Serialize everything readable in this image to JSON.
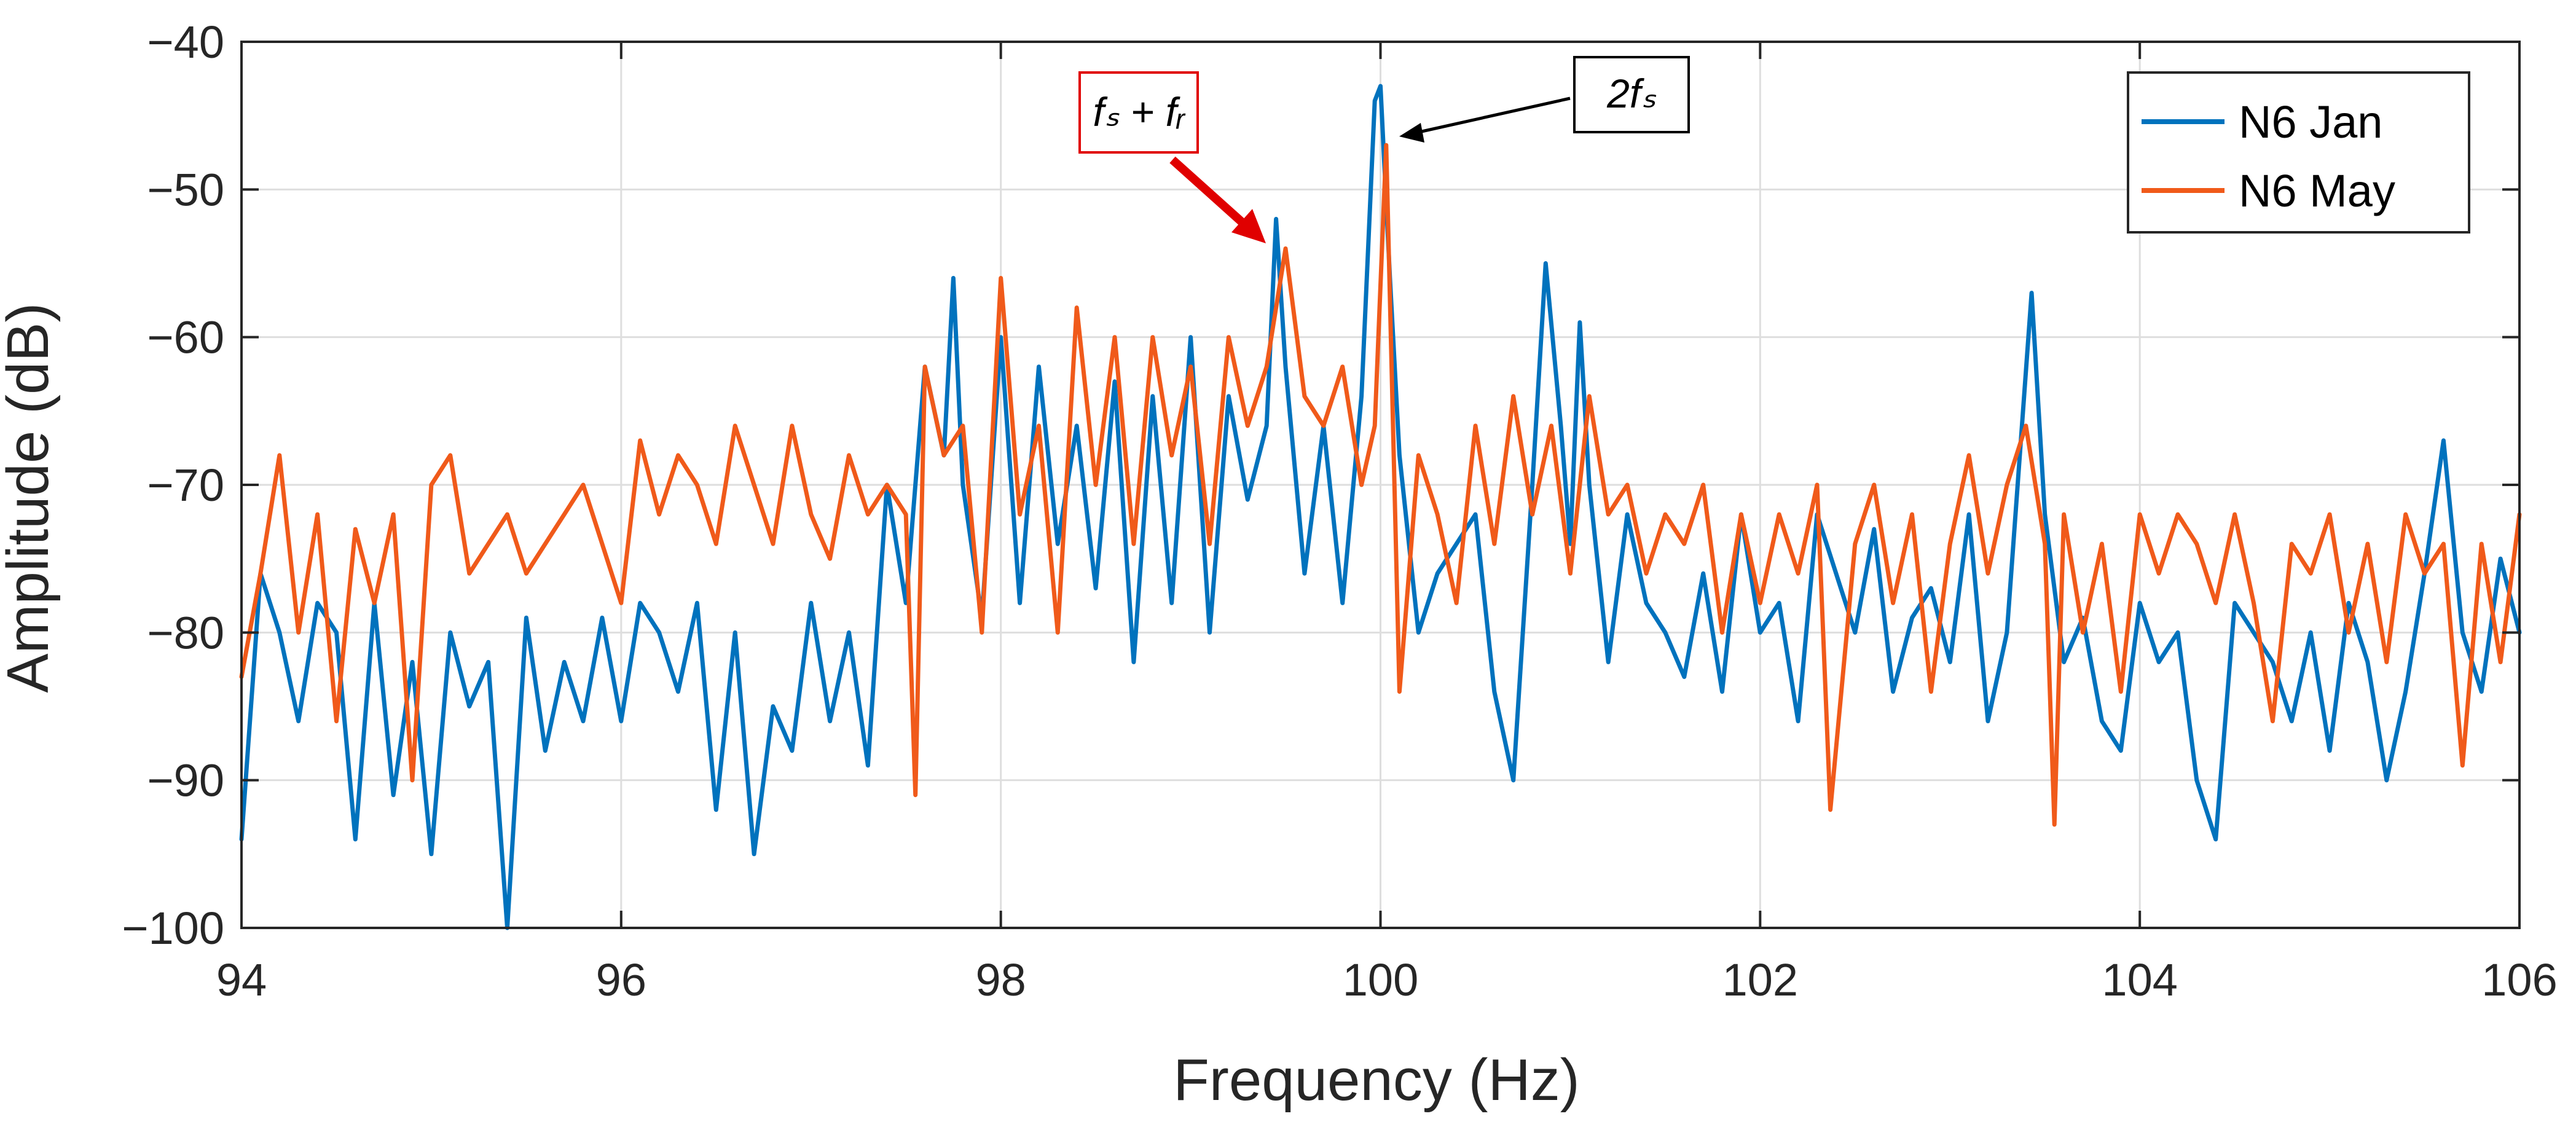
{
  "chart_data": {
    "type": "line",
    "title": "",
    "xlabel": "Frequency (Hz)",
    "ylabel": "Amplitude (dB)",
    "xlim": [
      94,
      106
    ],
    "ylim": [
      -100,
      -40
    ],
    "xticks": [
      94,
      96,
      98,
      100,
      102,
      104,
      106
    ],
    "yticks": [
      -100,
      -90,
      -80,
      -70,
      -60,
      -50,
      -40
    ],
    "xtick_labels": [
      "94",
      "96",
      "98",
      "100",
      "102",
      "104",
      "106"
    ],
    "ytick_labels": [
      "−100",
      "−90",
      "−80",
      "−70",
      "−60",
      "−50",
      "−40"
    ],
    "grid": true,
    "legend_position": "top-right",
    "colors": {
      "jan": "#0072BD",
      "may": "#F05A1A",
      "red_arrow": "#E00000",
      "black_arrow": "#000000",
      "red_box": "#E00000"
    },
    "series": [
      {
        "name": "N6 Jan",
        "key": "jan",
        "x": [
          94.0,
          94.1,
          94.2,
          94.3,
          94.4,
          94.5,
          94.6,
          94.7,
          94.8,
          94.9,
          95.0,
          95.1,
          95.2,
          95.3,
          95.4,
          95.5,
          95.6,
          95.7,
          95.8,
          95.9,
          96.0,
          96.1,
          96.2,
          96.3,
          96.4,
          96.5,
          96.6,
          96.7,
          96.8,
          96.9,
          97.0,
          97.1,
          97.2,
          97.3,
          97.4,
          97.5,
          97.6,
          97.7,
          97.75,
          97.8,
          97.9,
          98.0,
          98.1,
          98.2,
          98.3,
          98.4,
          98.5,
          98.6,
          98.7,
          98.8,
          98.9,
          99.0,
          99.1,
          99.2,
          99.3,
          99.4,
          99.45,
          99.5,
          99.6,
          99.7,
          99.8,
          99.9,
          99.97,
          100.0,
          100.05,
          100.1,
          100.2,
          100.3,
          100.4,
          100.5,
          100.6,
          100.7,
          100.8,
          100.87,
          100.95,
          101.0,
          101.05,
          101.1,
          101.2,
          101.3,
          101.4,
          101.5,
          101.6,
          101.7,
          101.8,
          101.9,
          102.0,
          102.1,
          102.2,
          102.3,
          102.4,
          102.5,
          102.6,
          102.7,
          102.8,
          102.9,
          103.0,
          103.1,
          103.2,
          103.3,
          103.43,
          103.5,
          103.6,
          103.7,
          103.8,
          103.9,
          104.0,
          104.1,
          104.2,
          104.3,
          104.4,
          104.5,
          104.6,
          104.7,
          104.8,
          104.9,
          105.0,
          105.1,
          105.2,
          105.3,
          105.4,
          105.5,
          105.6,
          105.7,
          105.8,
          105.9,
          106.0
        ],
        "y": [
          -94,
          -76,
          -80,
          -86,
          -78,
          -80,
          -94,
          -78,
          -91,
          -82,
          -95,
          -80,
          -85,
          -82,
          -100,
          -79,
          -88,
          -82,
          -86,
          -79,
          -86,
          -78,
          -80,
          -84,
          -78,
          -92,
          -80,
          -95,
          -85,
          -88,
          -78,
          -86,
          -80,
          -89,
          -70,
          -78,
          -62,
          -68,
          -56,
          -70,
          -79,
          -60,
          -78,
          -62,
          -74,
          -66,
          -77,
          -63,
          -82,
          -64,
          -78,
          -60,
          -80,
          -64,
          -71,
          -66,
          -52,
          -62,
          -76,
          -66,
          -78,
          -64,
          -44,
          -43,
          -56,
          -68,
          -80,
          -76,
          -74,
          -72,
          -84,
          -90,
          -70,
          -55,
          -66,
          -74,
          -59,
          -70,
          -82,
          -72,
          -78,
          -80,
          -83,
          -76,
          -84,
          -72,
          -80,
          -78,
          -86,
          -72,
          -76,
          -80,
          -73,
          -84,
          -79,
          -77,
          -82,
          -72,
          -86,
          -80,
          -57,
          -72,
          -82,
          -79,
          -86,
          -88,
          -78,
          -82,
          -80,
          -90,
          -94,
          -78,
          -80,
          -82,
          -86,
          -80,
          -88,
          -78,
          -82,
          -90,
          -84,
          -76,
          -67,
          -80,
          -84,
          -75,
          -80
        ]
      },
      {
        "name": "N6 May",
        "key": "may",
        "x": [
          94.0,
          94.1,
          94.2,
          94.3,
          94.4,
          94.5,
          94.6,
          94.7,
          94.8,
          94.9,
          95.0,
          95.1,
          95.2,
          95.3,
          95.4,
          95.5,
          95.6,
          95.7,
          95.8,
          95.9,
          96.0,
          96.1,
          96.2,
          96.3,
          96.4,
          96.5,
          96.6,
          96.7,
          96.8,
          96.9,
          97.0,
          97.1,
          97.2,
          97.3,
          97.4,
          97.5,
          97.55,
          97.6,
          97.7,
          97.8,
          97.9,
          98.0,
          98.1,
          98.2,
          98.3,
          98.4,
          98.5,
          98.6,
          98.7,
          98.8,
          98.9,
          99.0,
          99.1,
          99.2,
          99.3,
          99.4,
          99.5,
          99.6,
          99.7,
          99.8,
          99.9,
          99.97,
          100.03,
          100.1,
          100.2,
          100.3,
          100.4,
          100.5,
          100.6,
          100.7,
          100.8,
          100.9,
          101.0,
          101.1,
          101.2,
          101.3,
          101.4,
          101.5,
          101.6,
          101.7,
          101.8,
          101.9,
          102.0,
          102.1,
          102.2,
          102.3,
          102.37,
          102.5,
          102.6,
          102.7,
          102.8,
          102.9,
          103.0,
          103.1,
          103.2,
          103.3,
          103.4,
          103.5,
          103.55,
          103.6,
          103.7,
          103.8,
          103.9,
          104.0,
          104.1,
          104.2,
          104.3,
          104.4,
          104.5,
          104.6,
          104.7,
          104.8,
          104.9,
          105.0,
          105.1,
          105.2,
          105.3,
          105.4,
          105.5,
          105.6,
          105.7,
          105.8,
          105.9,
          106.0
        ],
        "y": [
          -83,
          -76,
          -68,
          -80,
          -72,
          -86,
          -73,
          -78,
          -72,
          -90,
          -70,
          -68,
          -76,
          -74,
          -72,
          -76,
          -74,
          -72,
          -70,
          -74,
          -78,
          -67,
          -72,
          -68,
          -70,
          -74,
          -66,
          -70,
          -74,
          -66,
          -72,
          -75,
          -68,
          -72,
          -70,
          -72,
          -91,
          -62,
          -68,
          -66,
          -80,
          -56,
          -72,
          -66,
          -80,
          -58,
          -70,
          -60,
          -74,
          -60,
          -68,
          -62,
          -74,
          -60,
          -66,
          -62,
          -54,
          -64,
          -66,
          -62,
          -70,
          -66,
          -47,
          -84,
          -68,
          -72,
          -78,
          -66,
          -74,
          -64,
          -72,
          -66,
          -76,
          -64,
          -72,
          -70,
          -76,
          -72,
          -74,
          -70,
          -80,
          -72,
          -78,
          -72,
          -76,
          -70,
          -92,
          -74,
          -70,
          -78,
          -72,
          -84,
          -74,
          -68,
          -76,
          -70,
          -66,
          -74,
          -93,
          -72,
          -80,
          -74,
          -84,
          -72,
          -76,
          -72,
          -74,
          -78,
          -72,
          -78,
          -86,
          -74,
          -76,
          -72,
          -80,
          -74,
          -82,
          -72,
          -76,
          -74,
          -89,
          -74,
          -82,
          -72
        ]
      }
    ],
    "annotations": [
      {
        "id": "fsfr",
        "text": "fₛ + fᵣ",
        "points_to": {
          "x": 99.43,
          "y": -53
        },
        "box_color": "red"
      },
      {
        "id": "twofs",
        "text": "2fₛ",
        "points_to": {
          "x": 100.1,
          "y": -46
        },
        "box_color": "black"
      }
    ]
  }
}
